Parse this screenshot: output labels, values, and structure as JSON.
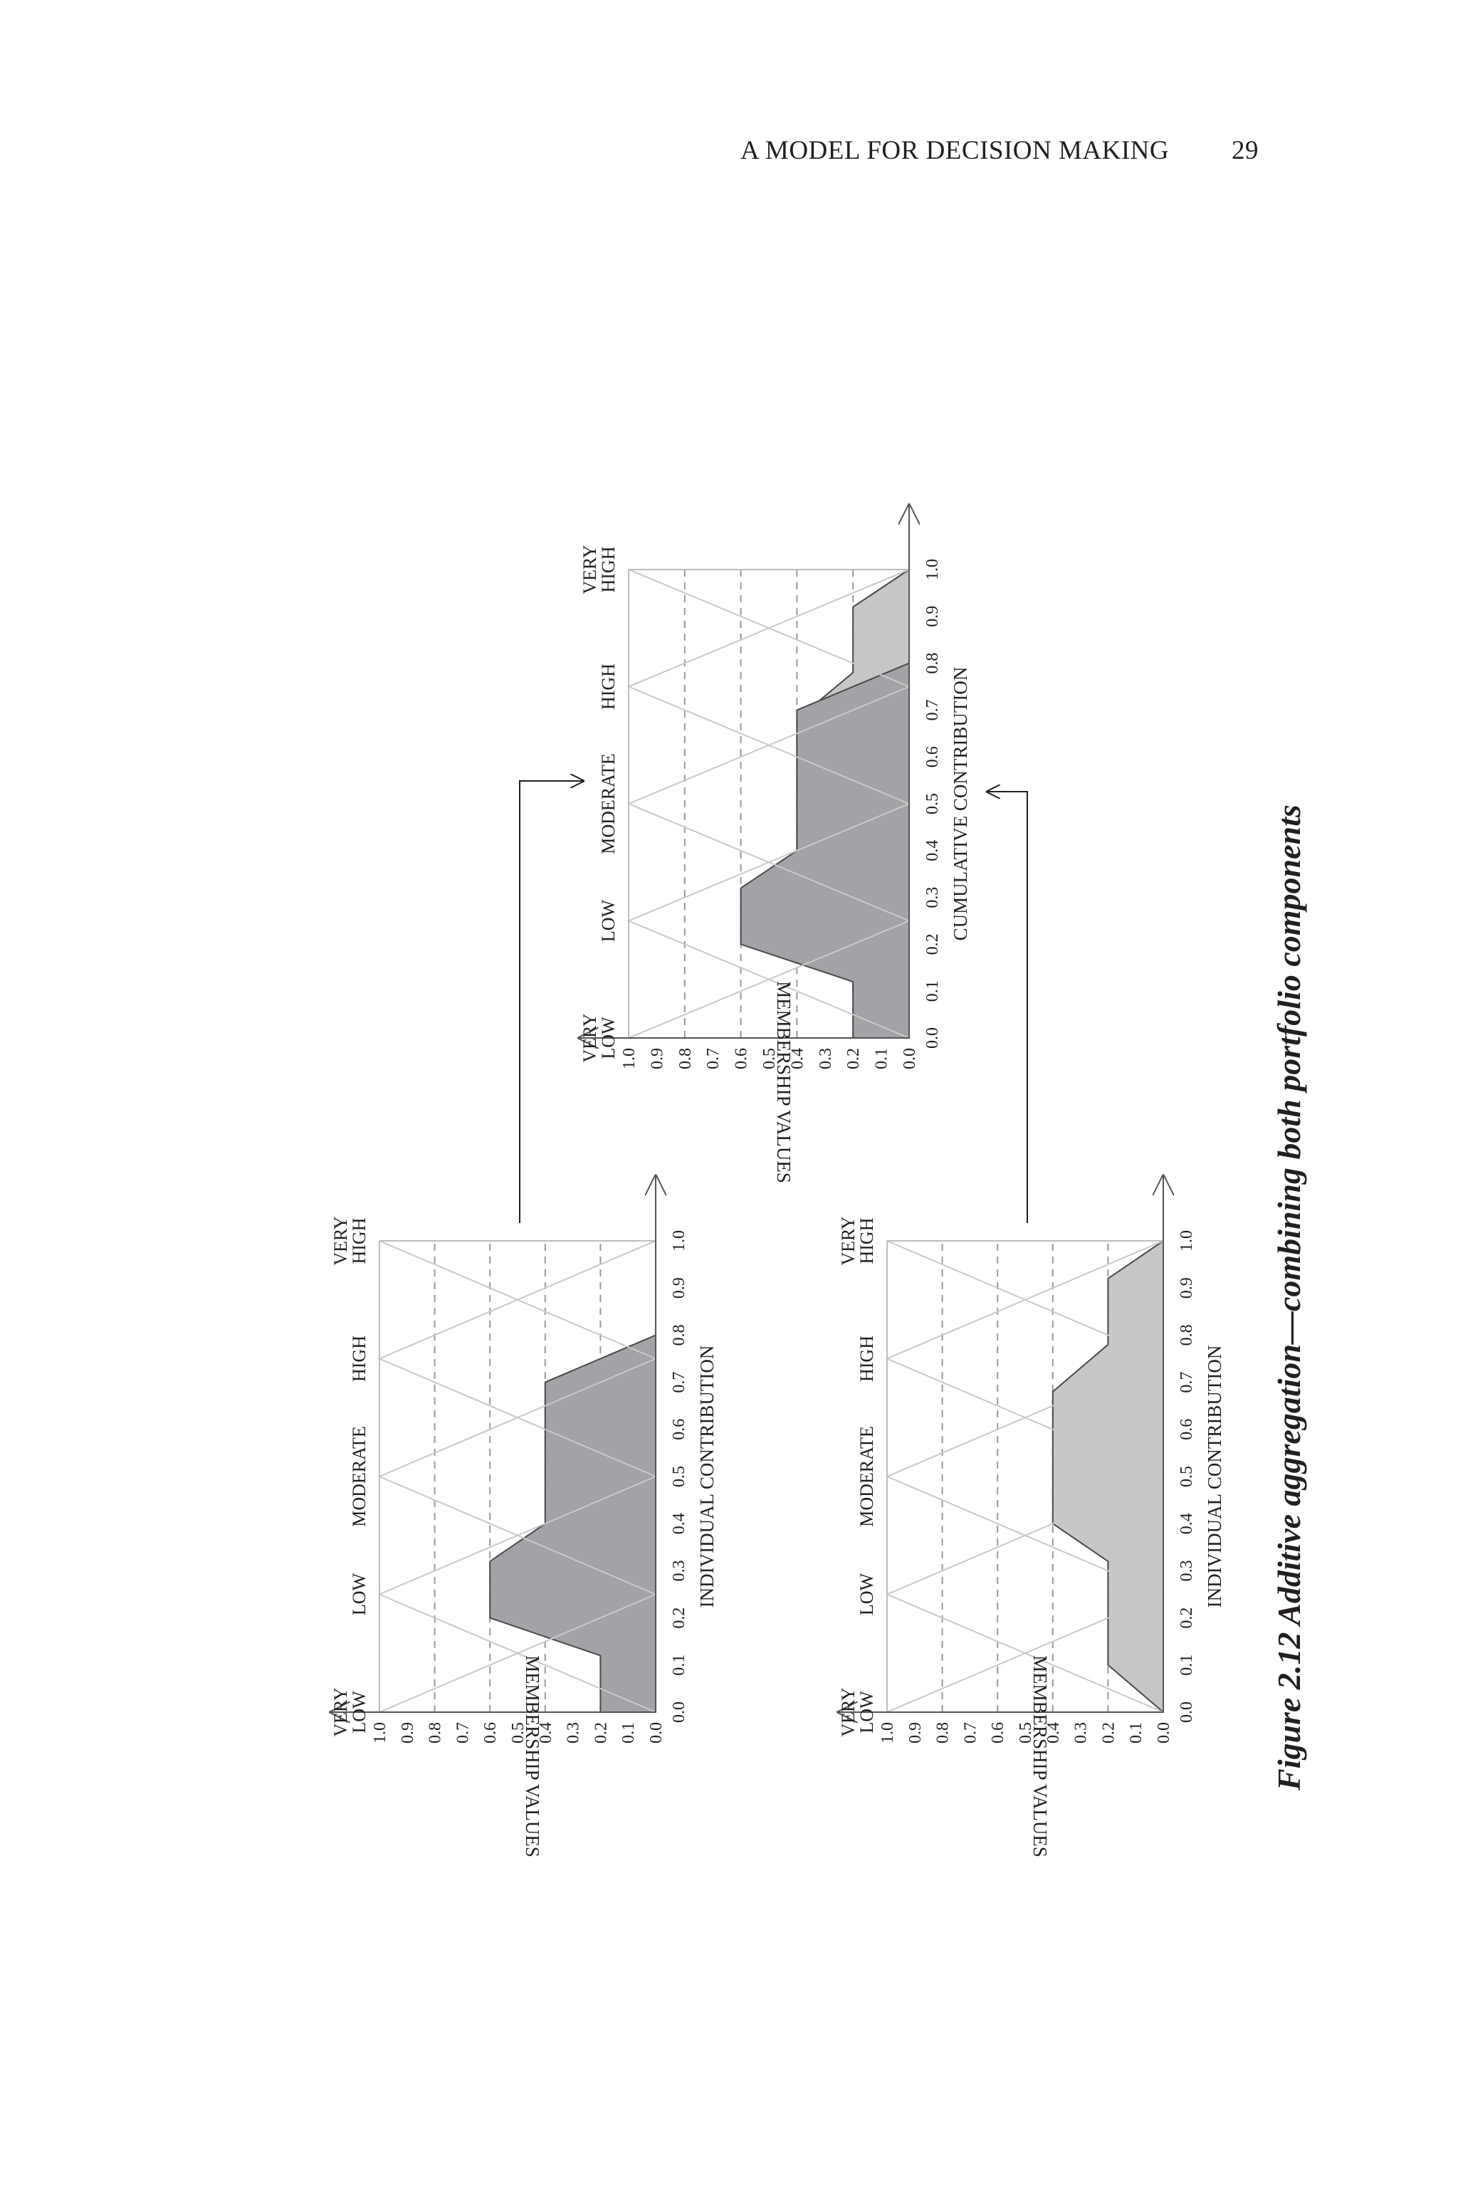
{
  "running_head": {
    "title": "A MODEL FOR DECISION MAKING",
    "page_number": "29"
  },
  "figure": {
    "caption": "Figure 2.12 Additive aggregation—combining both portfolio components",
    "ticks": [
      "0.0",
      "0.1",
      "0.2",
      "0.3",
      "0.4",
      "0.5",
      "0.6",
      "0.7",
      "0.8",
      "0.9",
      "1.0"
    ],
    "categories": [
      {
        "line1": "VERY",
        "line2": "LOW"
      },
      {
        "line1": "LOW",
        "line2": ""
      },
      {
        "line1": "MODERATE",
        "line2": ""
      },
      {
        "line1": "HIGH",
        "line2": ""
      },
      {
        "line1": "VERY",
        "line2": "HIGH"
      }
    ]
  },
  "chart_data": [
    {
      "type": "area",
      "xlabel": "INDIVIDUAL CONTRIBUTION",
      "ylabel": "MEMBERSHIP VALUES",
      "xlim": [
        0,
        1
      ],
      "ylim": [
        0,
        1
      ],
      "fill": "#a3a3a7",
      "series": [
        {
          "x": [
            0.0,
            0.1,
            0.12,
            0.2,
            0.3,
            0.32,
            0.4,
            0.6,
            0.7,
            0.8,
            1.0
          ],
          "y": [
            0.2,
            0.2,
            0.2,
            0.6,
            0.6,
            0.6,
            0.4,
            0.4,
            0.4,
            0.0,
            0.0
          ]
        }
      ]
    },
    {
      "type": "area",
      "xlabel": "INDIVIDUAL CONTRIBUTION",
      "ylabel": "MEMBERSHIP VALUES",
      "xlim": [
        0,
        1
      ],
      "ylim": [
        0,
        1
      ],
      "fill": "#c6c6c8",
      "series": [
        {
          "x": [
            0.0,
            0.1,
            0.3,
            0.32,
            0.4,
            0.6,
            0.68,
            0.78,
            0.9,
            0.92,
            1.0
          ],
          "y": [
            0.0,
            0.2,
            0.2,
            0.2,
            0.4,
            0.4,
            0.4,
            0.2,
            0.2,
            0.2,
            0.0
          ]
        }
      ]
    },
    {
      "type": "area",
      "xlabel": "CUMULATIVE CONTRIBUTION",
      "ylabel": "MEMBERSHIP VALUES",
      "xlim": [
        0,
        1
      ],
      "ylim": [
        0,
        1
      ],
      "series": [
        {
          "name": "",
          "fill": "#c6c6c8",
          "x": [
            0.0,
            0.1,
            0.3,
            0.32,
            0.4,
            0.6,
            0.68,
            0.78,
            0.9,
            0.92,
            1.0
          ],
          "y": [
            0.0,
            0.2,
            0.2,
            0.2,
            0.4,
            0.4,
            0.4,
            0.2,
            0.2,
            0.2,
            0.0
          ]
        },
        {
          "name": "",
          "fill": "#a3a3a7",
          "x": [
            0.0,
            0.1,
            0.12,
            0.2,
            0.3,
            0.32,
            0.4,
            0.6,
            0.7,
            0.8,
            1.0
          ],
          "y": [
            0.2,
            0.2,
            0.2,
            0.6,
            0.6,
            0.6,
            0.4,
            0.4,
            0.4,
            0.0,
            0.0
          ]
        }
      ]
    }
  ]
}
